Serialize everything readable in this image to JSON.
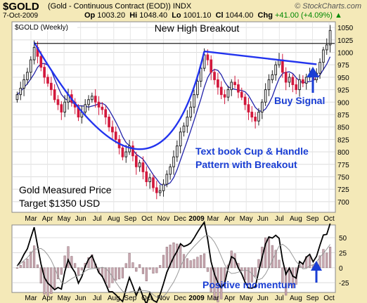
{
  "header": {
    "symbol": "$GOLD",
    "subtitle": "(Gold - Continuous Contract (EOD)) INDX",
    "brand": "© StockCharts.com",
    "date": "7-Oct-2009",
    "open_label": "Op",
    "open": "1003.20",
    "high_label": "Hi",
    "high": "1048.40",
    "low_label": "Lo",
    "low": "1001.10",
    "close_label": "Cl",
    "close": "1044.00",
    "change_label": "Chg",
    "change": "+41.00 (+4.09%)",
    "up_arrow": "▲"
  },
  "chart_data": [
    {
      "type": "candlestick",
      "tag": "$GOLD (Weekly)",
      "title": "New High Breakout",
      "ylim": [
        680,
        1060
      ],
      "y_ticks": [
        700,
        725,
        750,
        775,
        800,
        825,
        850,
        875,
        900,
        925,
        950,
        975,
        1000,
        1025,
        1050
      ],
      "x_labels": [
        "Mar",
        "Apr",
        "May",
        "Jun",
        "Jul",
        "Aug",
        "Sep",
        "Oct",
        "Nov",
        "Dec",
        "2009",
        "Mar",
        "Apr",
        "May",
        "Jun",
        "Jul",
        "Aug",
        "Sep",
        "Oct"
      ],
      "closes": [
        915,
        928,
        945,
        960,
        985,
        1010,
        992,
        970,
        950,
        938,
        925,
        905,
        895,
        880,
        900,
        915,
        900,
        890,
        870,
        880,
        895,
        905,
        912,
        900,
        890,
        885,
        870,
        850,
        840,
        825,
        808,
        790,
        800,
        812,
        792,
        770,
        778,
        760,
        740,
        748,
        728,
        718,
        722,
        735,
        755,
        770,
        790,
        812,
        840,
        852,
        870,
        890,
        915,
        942,
        968,
        995,
        985,
        960,
        945,
        930,
        915,
        910,
        925,
        940,
        935,
        920,
        910,
        895,
        880,
        870,
        862,
        880,
        900,
        925,
        945,
        955,
        975,
        985,
        960,
        940,
        950,
        935,
        925,
        945,
        938,
        950,
        955,
        945,
        958,
        980,
        1005,
        1015,
        1044
      ],
      "annotations": [
        {
          "text": "Text book Cup & Handle",
          "color": "#1a3ed4"
        },
        {
          "text": "Pattern with Breakout",
          "color": "#1a3ed4"
        },
        {
          "text": "Buy Signal",
          "color": "#1a3ed4"
        },
        {
          "text": "Gold Measured Price",
          "color": "#000000"
        },
        {
          "text": "Target $1350 USD",
          "color": "#000000"
        }
      ]
    },
    {
      "type": "line",
      "name": "momentum",
      "ylim": [
        -40,
        70
      ],
      "y_ticks": [
        -25,
        0,
        25,
        50
      ],
      "x_labels": [
        "Mar",
        "Apr",
        "May",
        "Jun",
        "Jul",
        "Aug",
        "Sep",
        "Oct",
        "Nov",
        "Dec",
        "2009",
        "Mar",
        "Apr",
        "May",
        "Jun",
        "Jul",
        "Aug",
        "Sep",
        "Oct"
      ],
      "annotation": {
        "text": "Positive momentum",
        "color": "#1a3ed4"
      }
    }
  ],
  "colors": {
    "up_candle": "#2a8a2a",
    "down_candle": "#d2183c",
    "moving_average": "#2222aa",
    "trend_line": "#2233ee",
    "histogram": "#c9a9b2",
    "background": "#f4e9b8"
  }
}
